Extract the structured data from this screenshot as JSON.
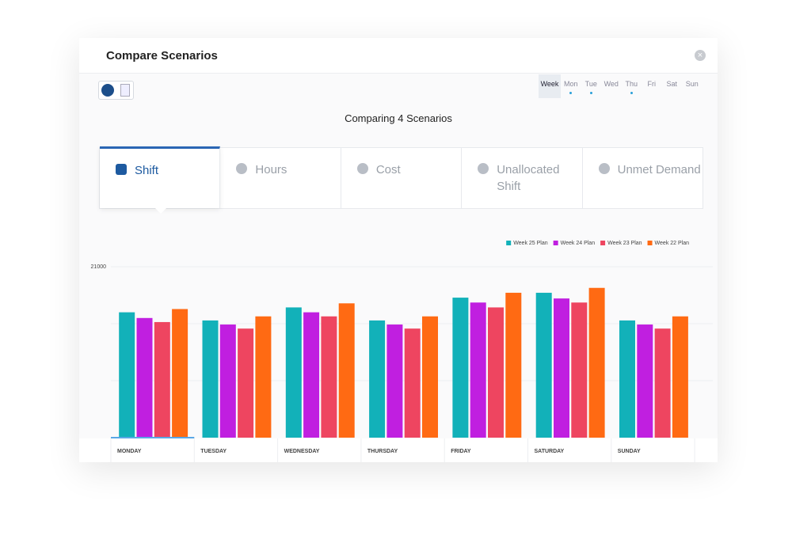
{
  "header": {
    "title": "Compare Scenarios"
  },
  "days": [
    {
      "label": "Week",
      "active": true,
      "marked": false
    },
    {
      "label": "Mon",
      "active": false,
      "marked": true
    },
    {
      "label": "Tue",
      "active": false,
      "marked": true
    },
    {
      "label": "Wed",
      "active": false,
      "marked": false
    },
    {
      "label": "Thu",
      "active": false,
      "marked": true
    },
    {
      "label": "Fri",
      "active": false,
      "marked": false
    },
    {
      "label": "Sat",
      "active": false,
      "marked": false
    },
    {
      "label": "Sun",
      "active": false,
      "marked": false
    }
  ],
  "subtitle": "Comparing 4 Scenarios",
  "tabs": [
    {
      "label": "Shift",
      "active": true
    },
    {
      "label": "Hours",
      "active": false
    },
    {
      "label": "Cost",
      "active": false
    },
    {
      "label": "Unallocated Shift",
      "active": false
    },
    {
      "label": "Unmet Demand",
      "active": false
    }
  ],
  "chart_data": {
    "type": "bar",
    "categories": [
      "MONDAY",
      "TUESDAY",
      "WEDNESDAY",
      "THURSDAY",
      "FRIDAY",
      "SATURDAY",
      "SUNDAY"
    ],
    "series": [
      {
        "name": "Week 25 Plan",
        "color": "#12b1b9",
        "values": [
          15400,
          14400,
          16000,
          14400,
          17200,
          17800,
          14400
        ]
      },
      {
        "name": "Week 24 Plan",
        "color": "#c01fe0",
        "values": [
          14700,
          13900,
          15400,
          13900,
          16600,
          17100,
          13900
        ]
      },
      {
        "name": "Week 23 Plan",
        "color": "#ee4560",
        "values": [
          14200,
          13400,
          14900,
          13400,
          16000,
          16600,
          13400
        ]
      },
      {
        "name": "Week 22 Plan",
        "color": "#ff6a13",
        "values": [
          15800,
          14900,
          16500,
          14900,
          17800,
          18400,
          14900
        ]
      }
    ],
    "ylim": [
      0,
      21000
    ],
    "yticks": [
      21000
    ],
    "minor_gridlines": [
      7000,
      14000
    ],
    "grid": true,
    "legend": "top-right"
  }
}
